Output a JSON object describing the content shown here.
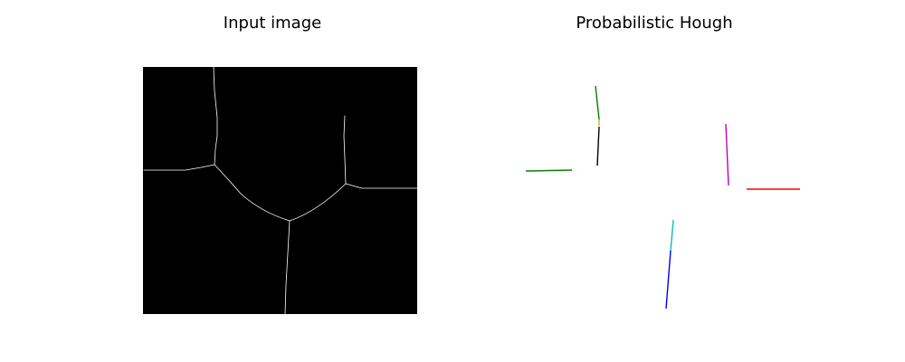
{
  "panels": [
    {
      "title": "Input image"
    },
    {
      "title": "Probabilistic Hough"
    }
  ],
  "colors": {
    "background": "#ffffff",
    "image_bg": "#000000",
    "ridge": "#ffffff"
  },
  "hough_segments": [
    {
      "color": "#008000"
    },
    {
      "color": "#bfbf00"
    },
    {
      "color": "#000000"
    },
    {
      "color": "#008000"
    },
    {
      "color": "#bf00bf"
    },
    {
      "color": "#ff0000"
    },
    {
      "color": "#00bfbf"
    },
    {
      "color": "#0000ff"
    }
  ]
}
